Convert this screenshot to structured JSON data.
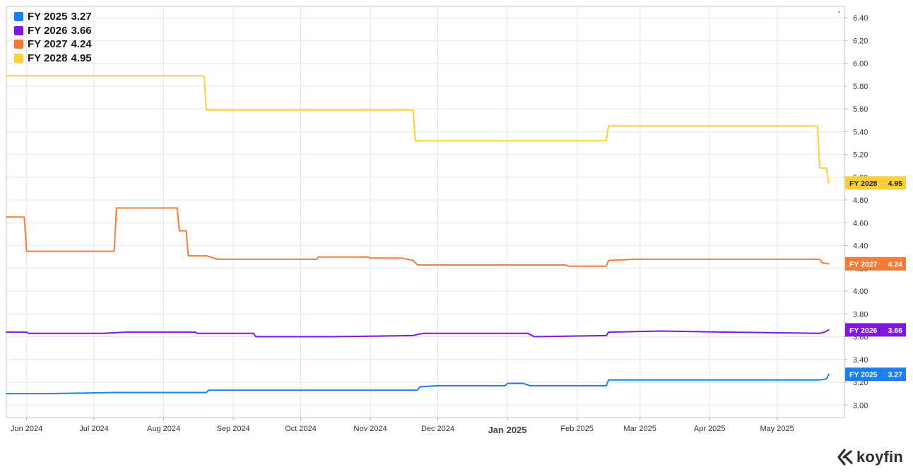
{
  "chart_data": {
    "type": "line",
    "x_ticks": [
      "Jun 2024",
      "Jul 2024",
      "Aug 2024",
      "Sep 2024",
      "Oct 2024",
      "Nov 2024",
      "Dec 2024",
      "Jan 2025",
      "Feb 2025",
      "Mar 2025",
      "Apr 2025",
      "May 2025"
    ],
    "y_ticks": [
      "3.00",
      "3.20",
      "3.40",
      "3.60",
      "3.80",
      "4.00",
      "4.20",
      "4.40",
      "4.60",
      "4.80",
      "5.00",
      "5.20",
      "5.40",
      "5.60",
      "5.80",
      "6.00",
      "6.20",
      "6.40"
    ],
    "ylim": [
      2.89,
      6.5
    ],
    "xlim": [
      "2024-05-23",
      "2025-05-31"
    ],
    "grid": true,
    "legend_position": "top-left",
    "series": [
      {
        "name": "FY 2025",
        "last": "3.27",
        "color": "#1b7ff0",
        "points": [
          [
            "2024-05-23",
            3.1
          ],
          [
            "2024-06-10",
            3.1
          ],
          [
            "2024-07-10",
            3.11
          ],
          [
            "2024-08-15",
            3.11
          ],
          [
            "2024-08-20",
            3.11
          ],
          [
            "2024-08-21",
            3.13
          ],
          [
            "2024-09-10",
            3.13
          ],
          [
            "2024-10-15",
            3.13
          ],
          [
            "2024-11-20",
            3.13
          ],
          [
            "2024-11-22",
            3.13
          ],
          [
            "2024-11-23",
            3.16
          ],
          [
            "2024-12-01",
            3.17
          ],
          [
            "2024-12-31",
            3.17
          ],
          [
            "2025-01-01",
            3.19
          ],
          [
            "2025-01-08",
            3.19
          ],
          [
            "2025-01-11",
            3.17
          ],
          [
            "2025-02-14",
            3.17
          ],
          [
            "2025-02-15",
            3.22
          ],
          [
            "2025-03-10",
            3.22
          ],
          [
            "2025-04-10",
            3.22
          ],
          [
            "2025-05-15",
            3.22
          ],
          [
            "2025-05-20",
            3.22
          ],
          [
            "2025-05-23",
            3.23
          ],
          [
            "2025-05-24",
            3.27
          ]
        ]
      },
      {
        "name": "FY 2026",
        "last": "3.66",
        "color": "#8116e3",
        "points": [
          [
            "2024-05-23",
            3.64
          ],
          [
            "2024-06-01",
            3.64
          ],
          [
            "2024-06-02",
            3.63
          ],
          [
            "2024-07-05",
            3.63
          ],
          [
            "2024-07-15",
            3.64
          ],
          [
            "2024-08-15",
            3.64
          ],
          [
            "2024-08-16",
            3.63
          ],
          [
            "2024-09-10",
            3.63
          ],
          [
            "2024-09-11",
            3.6
          ],
          [
            "2024-10-15",
            3.6
          ],
          [
            "2024-11-20",
            3.61
          ],
          [
            "2024-11-22",
            3.62
          ],
          [
            "2024-11-25",
            3.63
          ],
          [
            "2025-01-10",
            3.63
          ],
          [
            "2025-01-13",
            3.6
          ],
          [
            "2025-02-14",
            3.61
          ],
          [
            "2025-02-15",
            3.64
          ],
          [
            "2025-03-10",
            3.65
          ],
          [
            "2025-04-10",
            3.64
          ],
          [
            "2025-05-20",
            3.63
          ],
          [
            "2025-05-22",
            3.64
          ],
          [
            "2025-05-24",
            3.66
          ]
        ]
      },
      {
        "name": "FY 2027",
        "last": "4.24",
        "color": "#f47b38",
        "points": [
          [
            "2024-05-23",
            4.65
          ],
          [
            "2024-05-31",
            4.65
          ],
          [
            "2024-06-01",
            4.35
          ],
          [
            "2024-07-10",
            4.35
          ],
          [
            "2024-07-11",
            4.73
          ],
          [
            "2024-08-07",
            4.73
          ],
          [
            "2024-08-08",
            4.53
          ],
          [
            "2024-08-11",
            4.53
          ],
          [
            "2024-08-12",
            4.31
          ],
          [
            "2024-08-20",
            4.31
          ],
          [
            "2024-08-25",
            4.28
          ],
          [
            "2024-09-10",
            4.28
          ],
          [
            "2024-10-08",
            4.28
          ],
          [
            "2024-10-09",
            4.3
          ],
          [
            "2024-10-31",
            4.3
          ],
          [
            "2024-11-01",
            4.29
          ],
          [
            "2024-11-15",
            4.29
          ],
          [
            "2024-11-20",
            4.27
          ],
          [
            "2024-11-22",
            4.23
          ],
          [
            "2025-01-10",
            4.23
          ],
          [
            "2025-01-27",
            4.23
          ],
          [
            "2025-01-28",
            4.22
          ],
          [
            "2025-02-14",
            4.22
          ],
          [
            "2025-02-15",
            4.27
          ],
          [
            "2025-02-28",
            4.28
          ],
          [
            "2025-04-30",
            4.28
          ],
          [
            "2025-05-01",
            4.28
          ],
          [
            "2025-05-20",
            4.28
          ],
          [
            "2025-05-21",
            4.25
          ],
          [
            "2025-05-24",
            4.24
          ]
        ]
      },
      {
        "name": "FY 2028",
        "last": "4.95",
        "color": "#fbcf3a",
        "points": [
          [
            "2024-05-23",
            5.89
          ],
          [
            "2024-08-19",
            5.89
          ],
          [
            "2024-08-20",
            5.59
          ],
          [
            "2024-11-20",
            5.59
          ],
          [
            "2024-11-21",
            5.32
          ],
          [
            "2025-02-14",
            5.32
          ],
          [
            "2025-02-15",
            5.45
          ],
          [
            "2025-05-19",
            5.45
          ],
          [
            "2025-05-20",
            5.08
          ],
          [
            "2025-05-23",
            5.08
          ],
          [
            "2025-05-24",
            4.95
          ]
        ]
      }
    ]
  },
  "brand": {
    "name": "koyfin"
  }
}
